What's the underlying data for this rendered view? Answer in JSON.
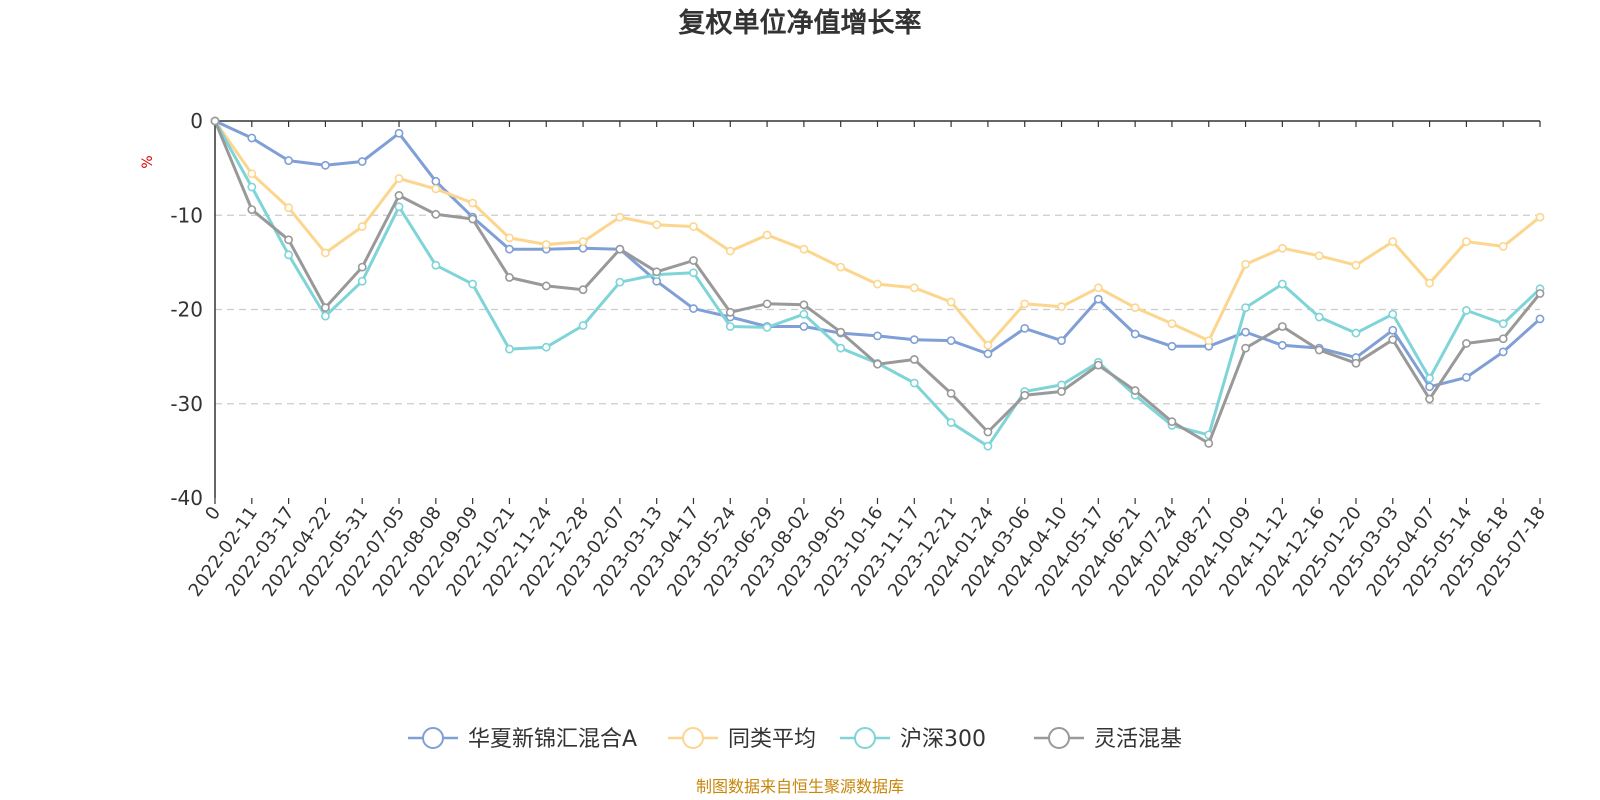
{
  "chart_data": {
    "type": "line",
    "title": "复权单位净值增长率",
    "ylabel": "%",
    "xlabel": "",
    "ylim": [
      -40,
      0
    ],
    "y_ticks": [
      0,
      -10,
      -20,
      -30,
      -40
    ],
    "grid": "horizontal dashed",
    "legend_position": "bottom-center",
    "x_ticks": [
      "0",
      "2022-02-11",
      "2022-03-17",
      "2022-04-22",
      "2022-05-31",
      "2022-07-05",
      "2022-08-08",
      "2022-09-09",
      "2022-10-21",
      "2022-11-24",
      "2022-12-28",
      "2023-02-07",
      "2023-03-13",
      "2023-04-17",
      "2023-05-24",
      "2023-06-29",
      "2023-08-02",
      "2023-09-05",
      "2023-10-16",
      "2023-11-17",
      "2023-12-21",
      "2024-01-24",
      "2024-03-06",
      "2024-04-10",
      "2024-05-17",
      "2024-06-21",
      "2024-07-24",
      "2024-08-27",
      "2024-10-09",
      "2024-11-12",
      "2024-12-16",
      "2025-01-20",
      "2025-03-03",
      "2025-04-07",
      "2025-05-14",
      "2025-06-18",
      "2025-07-18"
    ],
    "series": [
      {
        "name": "华夏新锦汇混合A",
        "color": "#7f9fd6",
        "values": [
          0,
          -1.8,
          -4.2,
          -4.7,
          -4.3,
          -1.3,
          -6.4,
          -10.2,
          -13.6,
          -13.6,
          -13.5,
          -13.6,
          -17,
          -19.9,
          -20.8,
          -21.8,
          -21.8,
          -22.5,
          -22.8,
          -23.2,
          -23.3,
          -24.7,
          -22,
          -23.3,
          -18.9,
          -22.6,
          -23.9,
          -23.9,
          -22.4,
          -23.8,
          -24.1,
          -25.1,
          -22.2,
          -28.2,
          -27.2,
          -24.5,
          -21
        ]
      },
      {
        "name": "同类平均",
        "color": "#fcd68e",
        "values": [
          0,
          -5.6,
          -9.2,
          -14,
          -11.2,
          -6.1,
          -7.2,
          -8.7,
          -12.4,
          -13.1,
          -12.8,
          -10.2,
          -11,
          -11.2,
          -13.8,
          -12.1,
          -13.6,
          -15.5,
          -17.3,
          -17.7,
          -19.2,
          -23.8,
          -19.4,
          -19.7,
          -17.7,
          -19.8,
          -21.5,
          -23.3,
          -15.2,
          -13.5,
          -14.3,
          -15.3,
          -12.8,
          -17.2,
          -12.8,
          -13.3,
          -10.2
        ]
      },
      {
        "name": "沪深300",
        "color": "#7fd4d8",
        "values": [
          0,
          -7,
          -14.2,
          -20.7,
          -17,
          -9.1,
          -15.3,
          -17.3,
          -24.2,
          -24,
          -21.7,
          -17.1,
          -16.3,
          -16.1,
          -21.8,
          -21.9,
          -20.5,
          -24.1,
          -25.7,
          -27.8,
          -32,
          -34.5,
          -28.7,
          -28,
          -25.6,
          -29.1,
          -32.3,
          -33.3,
          -19.8,
          -17.3,
          -20.8,
          -22.5,
          -20.5,
          -27.3,
          -20.1,
          -21.5,
          -17.8
        ]
      },
      {
        "name": "灵活混基",
        "color": "#999999",
        "values": [
          0,
          -9.4,
          -12.6,
          -19.8,
          -15.5,
          -7.9,
          -9.9,
          -10.4,
          -16.6,
          -17.5,
          -17.9,
          -13.6,
          -16,
          -14.8,
          -20.3,
          -19.4,
          -19.5,
          -22.4,
          -25.8,
          -25.3,
          -28.9,
          -33,
          -29.1,
          -28.7,
          -25.9,
          -28.6,
          -31.9,
          -34.2,
          -24.1,
          -21.8,
          -24.3,
          -25.7,
          -23.2,
          -29.5,
          -23.6,
          -23.1,
          -18.3
        ]
      }
    ]
  },
  "footer": {
    "source": "制图数据来自恒生聚源数据库"
  }
}
